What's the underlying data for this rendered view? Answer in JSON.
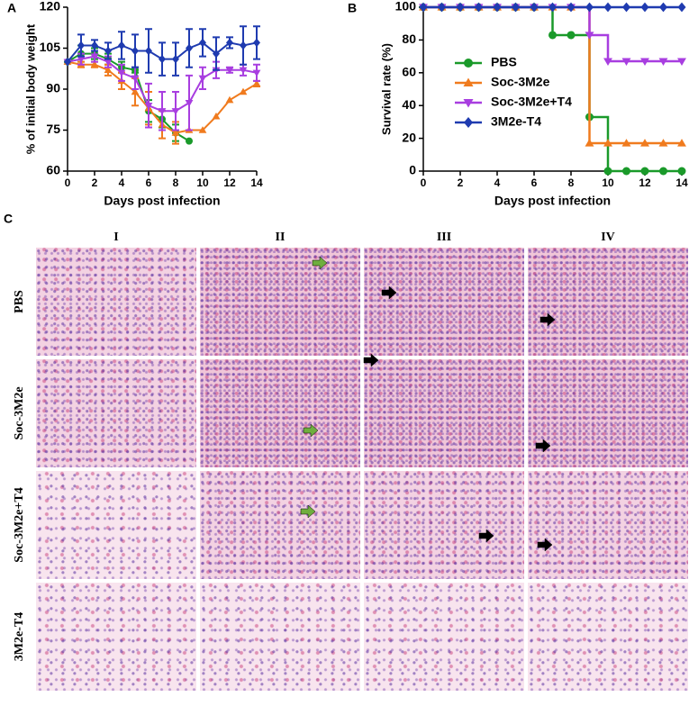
{
  "chart_data": [
    {
      "type": "line",
      "panel": "A",
      "x_label": "Days post infection",
      "y_label": "% of initial body weight",
      "xlim": [
        0,
        14
      ],
      "xticks": [
        0,
        2,
        4,
        6,
        8,
        10,
        12,
        14
      ],
      "ylim": [
        60,
        120
      ],
      "yticks": [
        60,
        75,
        90,
        105,
        120
      ],
      "series": [
        {
          "color": "#1a9a2a",
          "marker": "circle",
          "x": [
            0,
            1,
            2,
            3,
            4,
            5,
            6,
            7,
            8,
            9
          ],
          "values": [
            100,
            103,
            103,
            101,
            98,
            97,
            82,
            79,
            74,
            71
          ],
          "errors": [
            0,
            3,
            2,
            2,
            2,
            1,
            4,
            3,
            3,
            0
          ]
        },
        {
          "color": "#f07b1e",
          "marker": "triangle-up",
          "x": [
            0,
            1,
            2,
            3,
            4,
            5,
            6,
            7,
            8,
            9,
            10,
            11,
            12,
            13,
            14
          ],
          "values": [
            100,
            99,
            99,
            97,
            93,
            89,
            83,
            77,
            74,
            75,
            75,
            80,
            86,
            89,
            92
          ],
          "errors": [
            0,
            1,
            1,
            2,
            3,
            5,
            6,
            5,
            4,
            0,
            0,
            0,
            0,
            0,
            1
          ]
        },
        {
          "color": "#a83ee0",
          "marker": "triangle-down",
          "x": [
            0,
            1,
            2,
            3,
            4,
            5,
            6,
            7,
            8,
            9,
            10,
            11,
            12,
            13,
            14
          ],
          "values": [
            100,
            101,
            102,
            100,
            96,
            94,
            84,
            82,
            82,
            85,
            94,
            97,
            97,
            97,
            96
          ],
          "errors": [
            0,
            2,
            2,
            2,
            3,
            4,
            8,
            7,
            7,
            10,
            4,
            3,
            1,
            2,
            3
          ]
        },
        {
          "color": "#1f3bb0",
          "marker": "diamond",
          "x": [
            0,
            1,
            2,
            3,
            4,
            5,
            6,
            7,
            8,
            9,
            10,
            11,
            12,
            13,
            14
          ],
          "values": [
            100,
            106,
            106,
            104,
            106,
            104,
            104,
            101,
            101,
            105,
            107,
            103,
            107,
            106,
            107
          ],
          "errors": [
            0,
            4,
            2,
            3,
            5,
            6,
            8,
            6,
            6,
            7,
            5,
            6,
            2,
            7,
            6
          ]
        }
      ]
    },
    {
      "type": "step",
      "panel": "B",
      "x_label": "Days post infection",
      "y_label": "Survival rate (%)",
      "xlim": [
        0,
        14
      ],
      "xticks": [
        0,
        2,
        4,
        6,
        8,
        10,
        12,
        14
      ],
      "ylim": [
        0,
        100
      ],
      "yticks": [
        0,
        20,
        40,
        60,
        80,
        100
      ],
      "legend": "upper-left",
      "series": [
        {
          "name": "PBS",
          "color": "#1a9a2a",
          "marker": "circle",
          "x": [
            0,
            1,
            2,
            3,
            4,
            5,
            6,
            7,
            8,
            9,
            10,
            11,
            12,
            13,
            14
          ],
          "values": [
            100,
            100,
            100,
            100,
            100,
            100,
            100,
            83,
            83,
            33,
            0,
            0,
            0,
            0,
            0
          ]
        },
        {
          "name": "Soc-3M2e",
          "color": "#f07b1e",
          "marker": "triangle-up",
          "x": [
            0,
            1,
            2,
            3,
            4,
            5,
            6,
            7,
            8,
            9,
            10,
            11,
            12,
            13,
            14
          ],
          "values": [
            100,
            100,
            100,
            100,
            100,
            100,
            100,
            100,
            100,
            17,
            17,
            17,
            17,
            17,
            17
          ]
        },
        {
          "name": "Soc-3M2e+T4",
          "color": "#a83ee0",
          "marker": "triangle-down",
          "x": [
            0,
            1,
            2,
            3,
            4,
            5,
            6,
            7,
            8,
            9,
            10,
            11,
            12,
            13,
            14
          ],
          "values": [
            100,
            100,
            100,
            100,
            100,
            100,
            100,
            100,
            100,
            83,
            67,
            67,
            67,
            67,
            67
          ]
        },
        {
          "name": "3M2e-T4",
          "color": "#1f3bb0",
          "marker": "diamond",
          "x": [
            0,
            1,
            2,
            3,
            4,
            5,
            6,
            7,
            8,
            9,
            10,
            11,
            12,
            13,
            14
          ],
          "values": [
            100,
            100,
            100,
            100,
            100,
            100,
            100,
            100,
            100,
            100,
            100,
            100,
            100,
            100,
            100
          ]
        }
      ]
    }
  ],
  "panel_c": {
    "label": "C",
    "columns": [
      "I",
      "II",
      "III",
      "IV"
    ],
    "rows": [
      "PBS",
      "Soc-3M2e",
      "Soc-3M2e+T4",
      "3M2e-T4"
    ]
  }
}
